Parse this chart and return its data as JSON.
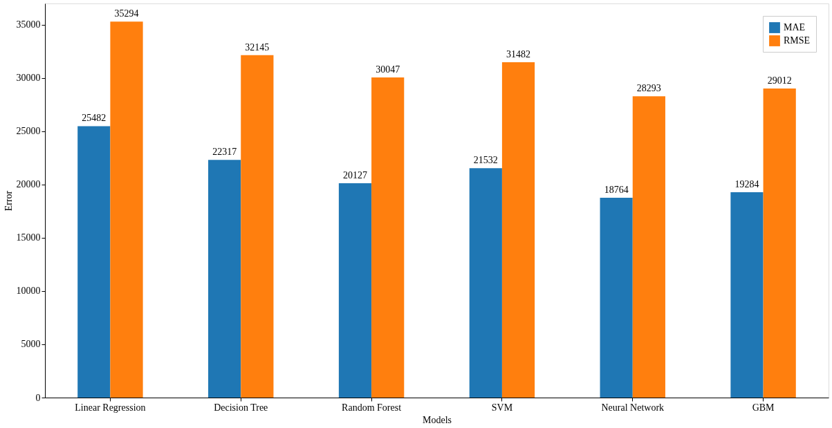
{
  "chart_data": {
    "type": "bar",
    "xlabel": "Models",
    "ylabel": "Error",
    "categories": [
      "Linear Regression",
      "Decision Tree",
      "Random Forest",
      "SVM",
      "Neural Network",
      "GBM"
    ],
    "series": [
      {
        "name": "MAE",
        "color": "#1f77b4",
        "values": [
          25482,
          22317,
          20127,
          21532,
          18764,
          19284
        ]
      },
      {
        "name": "RMSE",
        "color": "#ff7f0e",
        "values": [
          35294,
          32145,
          30047,
          31482,
          28293,
          29012
        ]
      }
    ],
    "ylim": [
      0,
      37000
    ],
    "yticks": [
      0,
      5000,
      10000,
      15000,
      20000,
      25000,
      30000,
      35000
    ],
    "data_labels": true,
    "legend": "top right",
    "grid": false
  }
}
